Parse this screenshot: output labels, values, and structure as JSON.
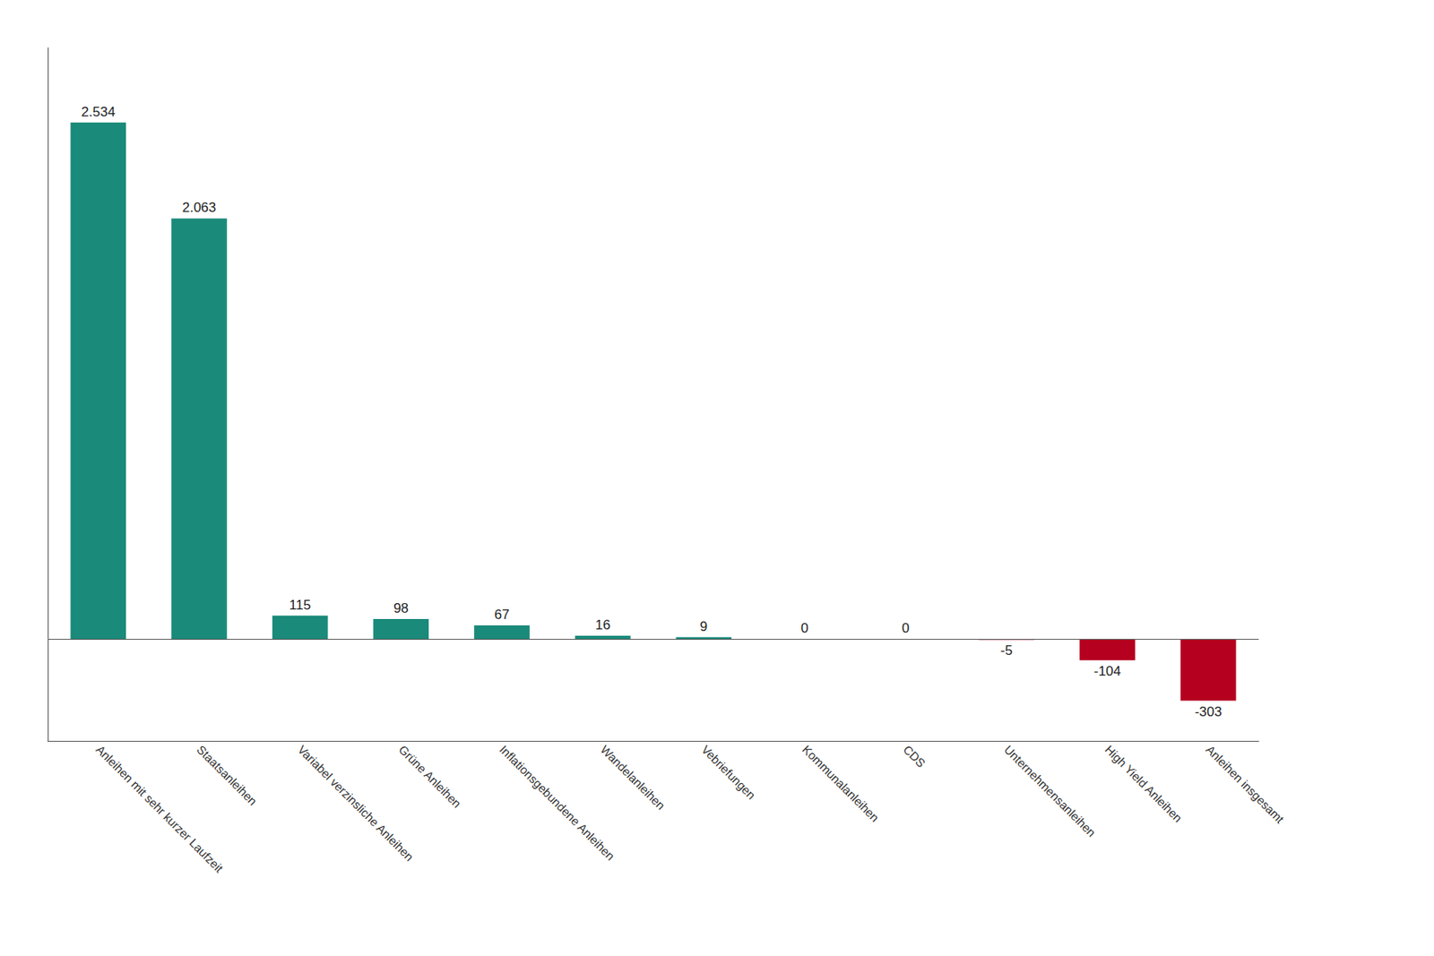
{
  "chart_data": {
    "type": "bar",
    "categories": [
      "Anleihen mit sehr kurzer Laufzeit",
      "Staatsanleihen",
      "Variabel verzinsliche Anleihen",
      "Grüne Anleihen",
      "Inflationsgebundene Anleihen",
      "Wandelanleihen",
      "Vebriefungen",
      "Kommunalanleihen",
      "CDS",
      "Unternehmensanleihen",
      "High Yield Anleihen",
      "Anleihen insgesamt"
    ],
    "values": [
      2534,
      2063,
      115,
      98,
      67,
      16,
      9,
      0,
      0,
      -5,
      -104,
      -303
    ],
    "value_labels": [
      "2.534",
      "2.063",
      "115",
      "98",
      "67",
      "16",
      "9",
      "0",
      "0",
      "-5",
      "-104",
      "-303"
    ],
    "colors": [
      "#1a8a7a",
      "#1a8a7a",
      "#1a8a7a",
      "#1a8a7a",
      "#1a8a7a",
      "#1a8a7a",
      "#1a8a7a",
      "#1a8a7a",
      "#1a8a7a",
      "#b5001f",
      "#b5001f",
      "#b5001f"
    ],
    "ylim": [
      -500,
      2900
    ],
    "data_labels": true,
    "tick_labels": "x",
    "grid": false
  }
}
